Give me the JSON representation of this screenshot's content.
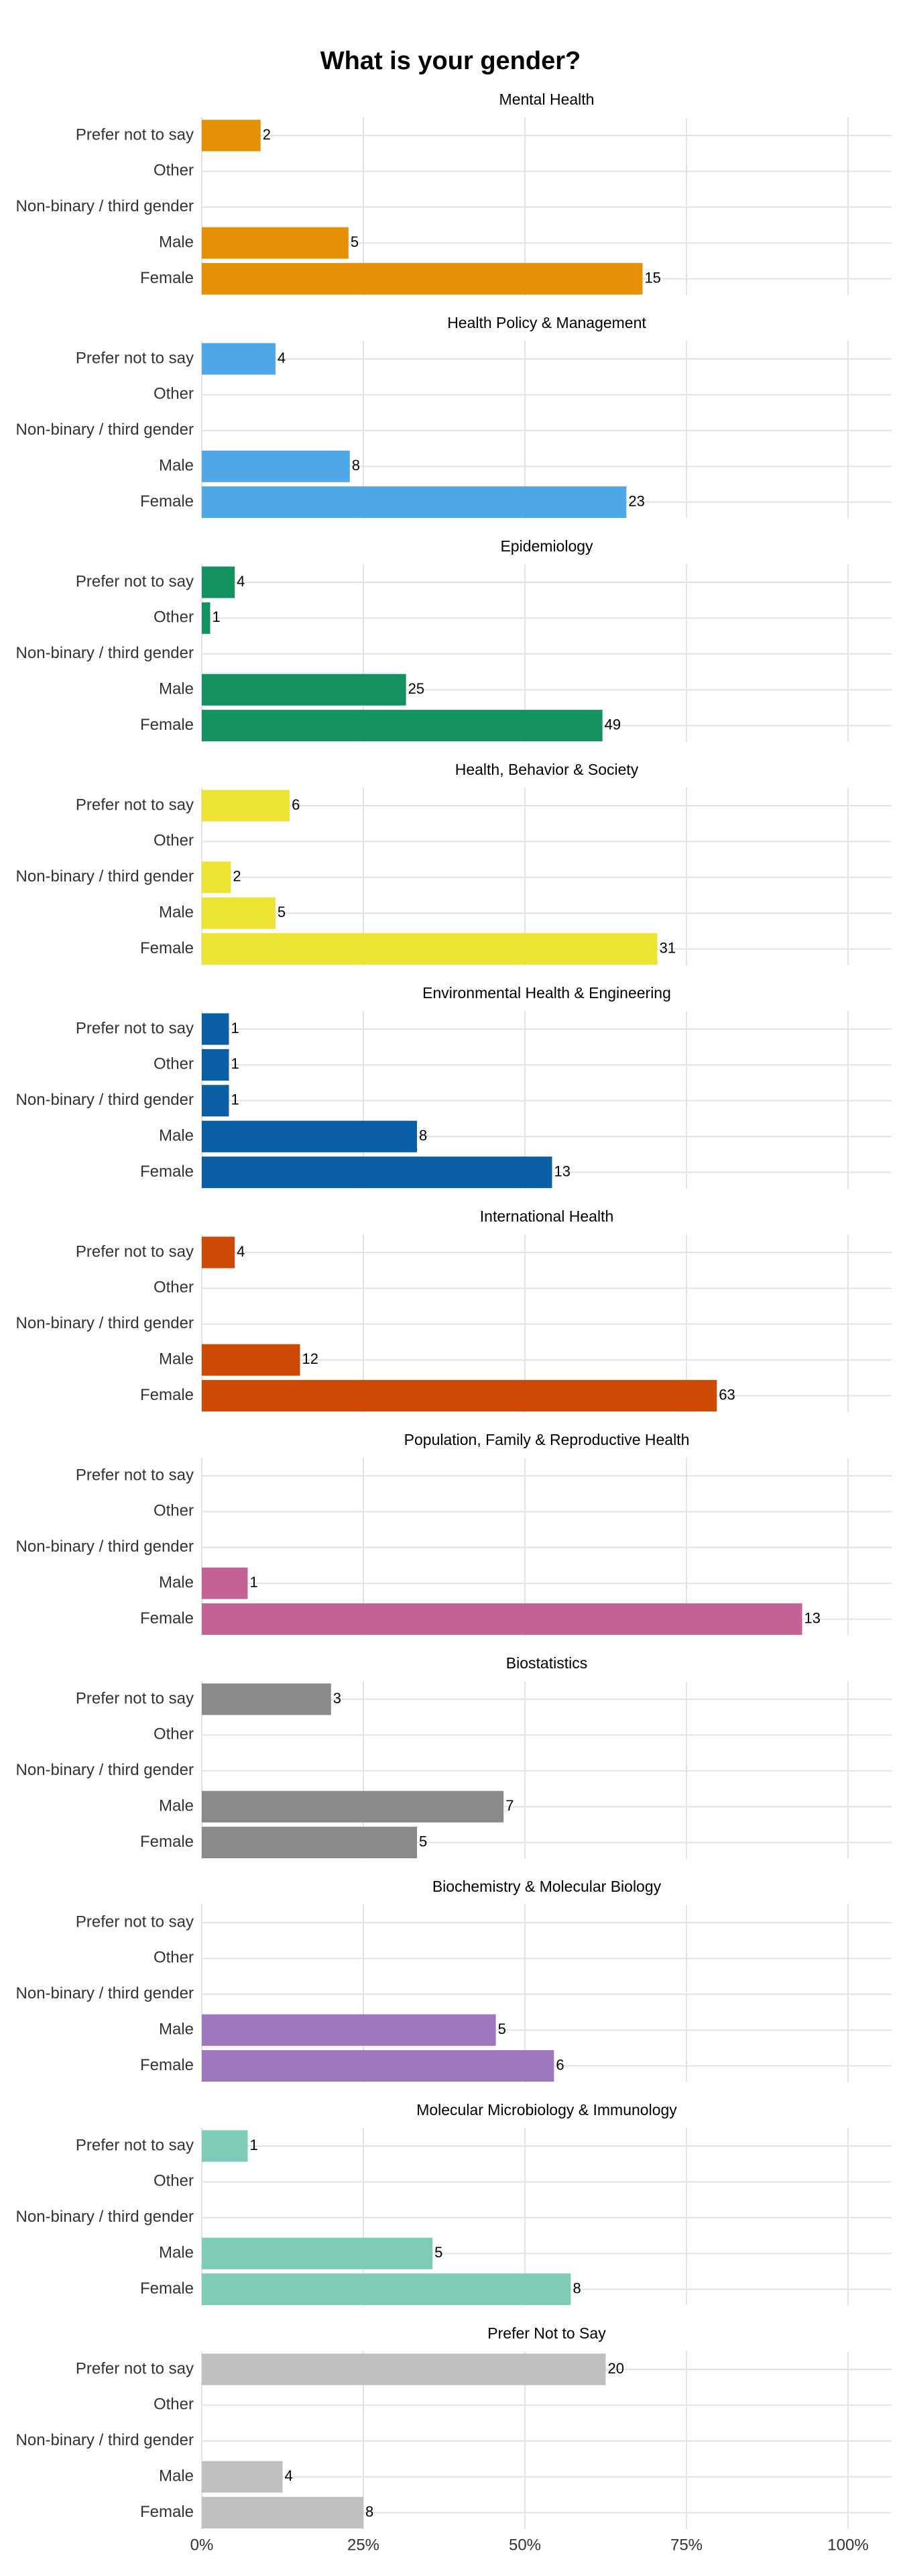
{
  "chart_data": {
    "type": "bar",
    "orientation": "horizontal",
    "title": "What is your gender?",
    "categories": [
      "Prefer not to say",
      "Other",
      "Non-binary / third gender",
      "Male",
      "Female"
    ],
    "xlim": [
      0,
      100
    ],
    "xticks": [
      {
        "value": 0,
        "label": "0%"
      },
      {
        "value": 25,
        "label": "25%"
      },
      {
        "value": 50,
        "label": "50%"
      },
      {
        "value": 75,
        "label": "75%"
      },
      {
        "value": 100,
        "label": "100%"
      }
    ],
    "grid": true,
    "series": [
      {
        "name": "Mental Health",
        "color": "#e69005",
        "values": [
          9.1,
          null,
          null,
          22.7,
          68.2
        ],
        "counts": [
          2,
          null,
          null,
          5,
          15
        ]
      },
      {
        "name": "Health Policy & Management",
        "color": "#4ea7e6",
        "values": [
          11.4,
          null,
          null,
          22.9,
          65.7
        ],
        "counts": [
          4,
          null,
          null,
          8,
          23
        ]
      },
      {
        "name": "Epidemiology",
        "color": "#13915f",
        "values": [
          5.1,
          1.3,
          null,
          31.6,
          62.0
        ],
        "counts": [
          4,
          1,
          null,
          25,
          49
        ]
      },
      {
        "name": "Health, Behavior & Society",
        "color": "#ede333",
        "values": [
          13.6,
          null,
          4.5,
          11.4,
          70.5
        ],
        "counts": [
          6,
          null,
          2,
          5,
          31
        ]
      },
      {
        "name": "Environmental Health & Engineering",
        "color": "#0b5fa6",
        "values": [
          4.2,
          4.2,
          4.2,
          33.3,
          54.2
        ],
        "counts": [
          1,
          1,
          1,
          8,
          13
        ]
      },
      {
        "name": "International Health",
        "color": "#cc4a05",
        "values": [
          5.1,
          null,
          null,
          15.2,
          79.7
        ],
        "counts": [
          4,
          null,
          null,
          12,
          63
        ]
      },
      {
        "name": "Population, Family & Reproductive Health",
        "color": "#c46296",
        "values": [
          null,
          null,
          null,
          7.1,
          92.9
        ],
        "counts": [
          null,
          null,
          null,
          1,
          13
        ]
      },
      {
        "name": "Biostatistics",
        "color": "#8a8a8a",
        "values": [
          20.0,
          null,
          null,
          46.7,
          33.3
        ],
        "counts": [
          3,
          null,
          null,
          7,
          5
        ]
      },
      {
        "name": "Biochemistry & Molecular Biology",
        "color": "#9d78bf",
        "values": [
          null,
          null,
          null,
          45.5,
          54.5
        ],
        "counts": [
          null,
          null,
          null,
          5,
          6
        ]
      },
      {
        "name": "Molecular Microbiology & Immunology",
        "color": "#7ecbb8",
        "values": [
          7.1,
          null,
          null,
          35.7,
          57.1
        ],
        "counts": [
          1,
          null,
          null,
          5,
          8
        ]
      },
      {
        "name": "Prefer Not to Say",
        "color": "#bfbfbf",
        "values": [
          62.5,
          null,
          null,
          12.5,
          25.0
        ],
        "counts": [
          20,
          null,
          null,
          4,
          8
        ]
      }
    ]
  }
}
